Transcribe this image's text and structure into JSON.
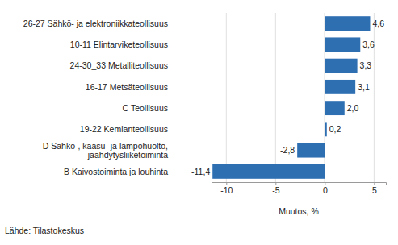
{
  "chart_data": {
    "type": "bar",
    "orientation": "horizontal",
    "categories": [
      "26-27 Sähkö- ja elektroniikkateollisuus",
      "10-11 Elintarviketeollisuus",
      "24-30_33 Metalliteollisuus",
      "16-17 Metsäteollisuus",
      "C Teollisuus",
      "19-22 Kemianteollisuus",
      "D Sähkö-, kaasu- ja lämpöhuolto,\njäähdytysliiketoiminta",
      "B Kaivostoiminta ja louhinta"
    ],
    "values": [
      4.6,
      3.6,
      3.3,
      3.1,
      2.0,
      0.2,
      -2.8,
      -11.4
    ],
    "value_labels": [
      "4,6",
      "3,6",
      "3,3",
      "3,1",
      "2,0",
      "0,2",
      "-2,8",
      "-11,4"
    ],
    "color": "#2e6fb2",
    "xlim": [
      -11.5,
      6.2
    ],
    "xticks": [
      -10,
      -5,
      0,
      5
    ],
    "x_label": "Muutos, %",
    "source": "Lähde: Tilastokeskus",
    "grid": true,
    "data_labels": true
  }
}
